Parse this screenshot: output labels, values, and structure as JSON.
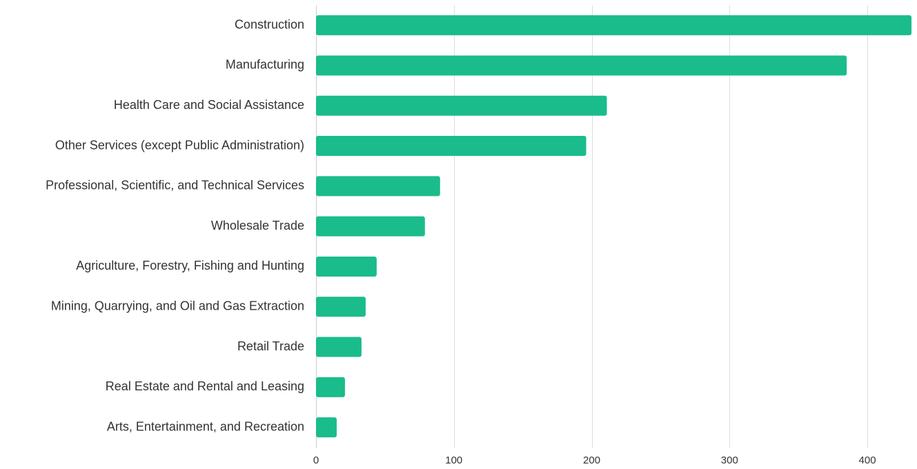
{
  "chart_data": {
    "type": "bar",
    "orientation": "horizontal",
    "title": "",
    "xlabel": "",
    "ylabel": "",
    "categories": [
      "Construction",
      "Manufacturing",
      "Health Care and Social Assistance",
      "Other Services (except Public Administration)",
      "Professional, Scientific, and Technical Services",
      "Wholesale Trade",
      "Agriculture, Forestry, Fishing and Hunting",
      "Mining, Quarrying, and Oil and Gas Extraction",
      "Retail Trade",
      "Real Estate and Rental and Leasing",
      "Arts, Entertainment, and Recreation"
    ],
    "values": [
      432,
      385,
      211,
      196,
      90,
      79,
      44,
      36,
      33,
      21,
      15
    ],
    "xlim": [
      0,
      432
    ],
    "xticks": [
      0,
      100,
      200,
      300,
      400
    ],
    "xtick_labels": [
      "0",
      "100",
      "200",
      "300",
      "400"
    ],
    "grid": "vertical",
    "legend": "none",
    "colors": {
      "bar": "#1abc8c",
      "grid": "#dddddd",
      "label": "#333333",
      "tick": "#333333"
    }
  }
}
